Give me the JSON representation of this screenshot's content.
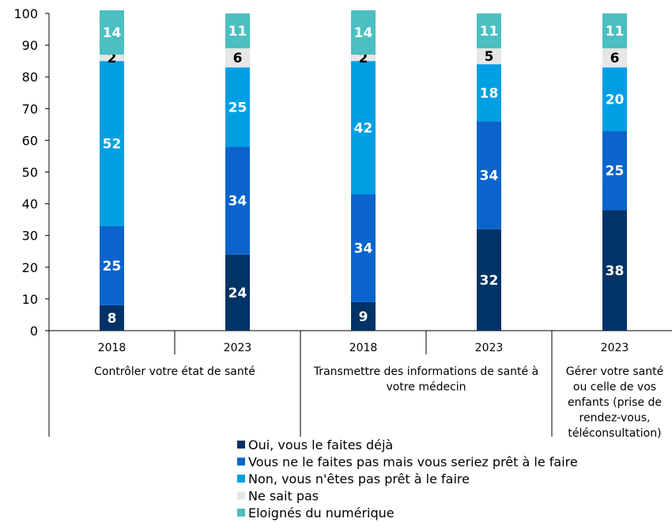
{
  "chart_data": {
    "type": "bar",
    "stacked": true,
    "ylim": [
      0,
      100
    ],
    "yticks": [
      0,
      10,
      20,
      30,
      40,
      50,
      60,
      70,
      80,
      90,
      100
    ],
    "grid": false,
    "legend_position": "bottom",
    "categories": [
      "2018",
      "2023",
      "2018",
      "2023",
      "2023"
    ],
    "groups": [
      {
        "label": "Contrôler votre état de santé",
        "bars": 2
      },
      {
        "label": "Transmettre des informations de santé à votre médecin",
        "bars": 2
      },
      {
        "label": "Gérer votre santé ou celle de vos enfants (prise de rendez-vous, téléconsultation)",
        "bars": 1
      }
    ],
    "series": [
      {
        "name": "Oui, vous le faites déjà",
        "color": "#003366",
        "label_color": "#ffffff",
        "values": [
          8,
          24,
          9,
          32,
          38
        ]
      },
      {
        "name": "Vous ne le faites pas mais vous seriez prêt à le faire",
        "color": "#0A64CC",
        "label_color": "#ffffff",
        "values": [
          25,
          34,
          34,
          34,
          25
        ]
      },
      {
        "name": "Non, vous n'êtes pas prêt à le faire",
        "color": "#009FE3",
        "label_color": "#ffffff",
        "values": [
          52,
          25,
          42,
          18,
          20
        ]
      },
      {
        "name": "Ne sait pas",
        "color": "#E6E6E6",
        "label_color": "#000000",
        "values": [
          2,
          6,
          2,
          5,
          6
        ]
      },
      {
        "name": "Eloignés du numérique",
        "color": "#4BBFC2",
        "label_color": "#ffffff",
        "values": [
          14,
          11,
          14,
          11,
          11
        ]
      }
    ]
  }
}
